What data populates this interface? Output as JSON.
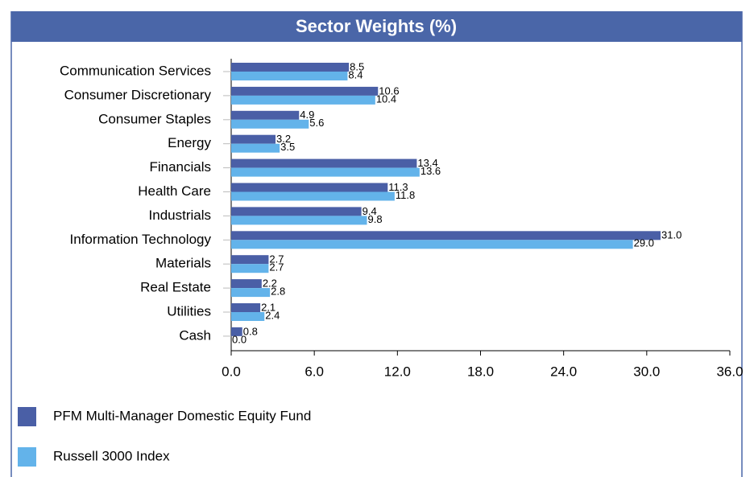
{
  "chart_data": {
    "type": "bar",
    "orientation": "horizontal",
    "title": "Sector Weights (%)",
    "categories": [
      "Communication Services",
      "Consumer Discretionary",
      "Consumer Staples",
      "Energy",
      "Financials",
      "Health Care",
      "Industrials",
      "Information Technology",
      "Materials",
      "Real Estate",
      "Utilities",
      "Cash"
    ],
    "series": [
      {
        "name": "PFM Multi-Manager Domestic Equity Fund",
        "color": "#4a5fa6",
        "values": [
          8.5,
          10.6,
          4.9,
          3.2,
          13.4,
          11.3,
          9.4,
          31.0,
          2.7,
          2.2,
          2.1,
          0.8
        ],
        "value_labels": [
          "8.5",
          "10.6",
          "4.9",
          "3.2",
          "13.4",
          "11.3",
          "9.4",
          "31.0",
          "2.7",
          "2.2",
          "2.1",
          "0.8"
        ]
      },
      {
        "name": "Russell 3000 Index",
        "color": "#63b3ea",
        "values": [
          8.4,
          10.4,
          5.6,
          3.5,
          13.6,
          11.8,
          9.8,
          29.0,
          2.7,
          2.8,
          2.4,
          0.0
        ],
        "value_labels": [
          "8.4",
          "10.4",
          "5.6",
          "3.5",
          "13.6",
          "11.8",
          "9.8",
          "29.0",
          "2.7",
          "2.8",
          "2.4",
          "0.0"
        ]
      }
    ],
    "xlim": [
      0,
      36
    ],
    "xticks": [
      {
        "value": 0,
        "label": "0.0"
      },
      {
        "value": 6,
        "label": "6.0"
      },
      {
        "value": 12,
        "label": "12.0"
      },
      {
        "value": 18,
        "label": "18.0"
      },
      {
        "value": 24,
        "label": "24.0"
      },
      {
        "value": 30,
        "label": "30.0"
      },
      {
        "value": 36,
        "label": "36.0"
      }
    ]
  }
}
